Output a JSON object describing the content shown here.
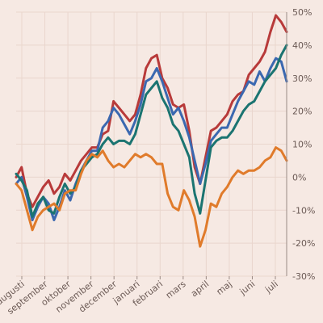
{
  "chart_data": {
    "type": "line",
    "title": "",
    "xlabel": "",
    "ylabel": "",
    "x_ticks": [
      "augusti",
      "september",
      "oktober",
      "november",
      "december",
      "januari",
      "februari",
      "mars",
      "april",
      "maj",
      "juni",
      "juli"
    ],
    "y_ticks": [
      "50%",
      "40%",
      "30%",
      "20%",
      "10%",
      "0%",
      "-10%",
      "-20%",
      "-30%"
    ],
    "ylim": [
      -30,
      50
    ],
    "y_axis_position": "right",
    "grid": true,
    "x": [
      0,
      2,
      4,
      6,
      8,
      10,
      12,
      14,
      16,
      18,
      20,
      22,
      24,
      26,
      28,
      30,
      32,
      34,
      36,
      38,
      40,
      42,
      44,
      46,
      48,
      50,
      52,
      54,
      56,
      58,
      60,
      62,
      64,
      66,
      68,
      70,
      72,
      74,
      76,
      78,
      80,
      82,
      84,
      86,
      88,
      90,
      92,
      94,
      96,
      98,
      100
    ],
    "series": [
      {
        "color": "#b83a3a",
        "values": [
          0,
          3,
          -5,
          -9,
          -6,
          -3,
          -1,
          -5,
          -3,
          1,
          -1,
          2,
          5,
          7,
          9,
          9,
          13,
          14,
          23,
          21,
          19,
          17,
          19,
          25,
          33,
          36,
          37,
          30,
          27,
          22,
          21,
          22,
          14,
          3,
          -2,
          6,
          14,
          15,
          17,
          19,
          23,
          25,
          26,
          31,
          33,
          35,
          38,
          44,
          49,
          47,
          44
        ]
      },
      {
        "color": "#3b68b0",
        "values": [
          -2,
          0,
          -6,
          -13,
          -9,
          -6,
          -8,
          -13,
          -9,
          -4,
          -7,
          -2,
          2,
          5,
          8,
          8,
          15,
          17,
          21,
          19,
          16,
          13,
          17,
          22,
          29,
          30,
          33,
          29,
          24,
          19,
          21,
          17,
          12,
          5,
          -2,
          4,
          11,
          13,
          15,
          15,
          19,
          23,
          26,
          29,
          28,
          32,
          29,
          33,
          36,
          35,
          29
        ]
      },
      {
        "color": "#1b7471",
        "values": [
          1,
          -1,
          -4,
          -12,
          -8,
          -6,
          -10,
          -11,
          -6,
          -2,
          -5,
          -3,
          2,
          4,
          6,
          7,
          10,
          12,
          10,
          11,
          11,
          10,
          13,
          19,
          25,
          27,
          29,
          24,
          21,
          16,
          14,
          10,
          6,
          -5,
          -11,
          -1,
          9,
          11,
          12,
          12,
          14,
          17,
          20,
          22,
          23,
          26,
          29,
          31,
          33,
          37,
          40
        ]
      },
      {
        "color": "#e07b2b",
        "values": [
          -2,
          -4,
          -10,
          -16,
          -12,
          -10,
          -9,
          -8,
          -10,
          -5,
          -4,
          -4,
          1,
          5,
          7,
          6,
          8,
          5,
          3,
          4,
          3,
          5,
          7,
          6,
          7,
          6,
          4,
          4,
          -5,
          -9,
          -10,
          -4,
          -7,
          -12,
          -21,
          -16,
          -8,
          -9,
          -5,
          -3,
          0,
          2,
          1,
          2,
          2,
          3,
          5,
          6,
          9,
          8,
          5
        ]
      }
    ]
  }
}
